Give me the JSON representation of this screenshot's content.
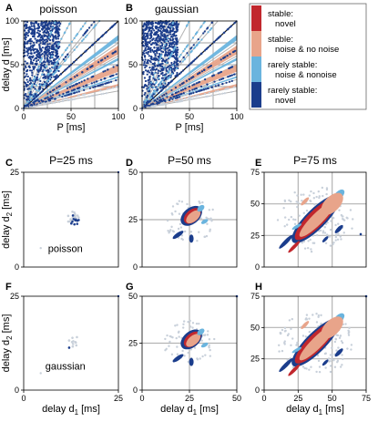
{
  "colors": {
    "stable_novel": "#c1272d",
    "stable_both": "#e8a48a",
    "rarely_both": "#6ab4de",
    "rarely_novel": "#1b3d8c",
    "grid": "#b3b3b3",
    "faint": "#c8d0da",
    "diag": "#111111"
  },
  "legend": [
    {
      "key": "stable_novel",
      "line1": "stable:",
      "line2": "novel"
    },
    {
      "key": "stable_both",
      "line1": "stable:",
      "line2": "noise & no noise"
    },
    {
      "key": "rarely_both",
      "line1": "rarely stable:",
      "line2": "noise & nonoise"
    },
    {
      "key": "rarely_novel",
      "line1": "rarely stable:",
      "line2": "novel"
    }
  ],
  "chart_data": [
    {
      "panel": "A",
      "type": "scatter",
      "title": "poisson",
      "xlabel": "P [ms]",
      "ylabel": "delay d [ms]",
      "xlim": [
        0,
        100
      ],
      "ylim": [
        0,
        100
      ],
      "xticks": [
        "0",
        "50",
        "100"
      ],
      "yticks": [
        "0",
        "50",
        "100"
      ]
    },
    {
      "panel": "B",
      "type": "scatter",
      "title": "gaussian",
      "xlabel": "P [ms]",
      "ylabel": "",
      "xlim": [
        0,
        100
      ],
      "ylim": [
        0,
        100
      ],
      "xticks": [
        "0",
        "50",
        "100"
      ],
      "yticks": [
        "0",
        "50",
        "100"
      ]
    },
    {
      "panel": "C",
      "type": "scatter",
      "title": "P=25 ms",
      "inset": "poisson",
      "xlabel": "",
      "ylabel": "delay d2 [ms]",
      "xlim": [
        0,
        25
      ],
      "ylim": [
        0,
        25
      ],
      "xticks": [],
      "yticks": [
        "0",
        "25"
      ]
    },
    {
      "panel": "D",
      "type": "scatter",
      "title": "P=50 ms",
      "xlabel": "",
      "ylabel": "",
      "xlim": [
        0,
        50
      ],
      "ylim": [
        0,
        50
      ],
      "xticks": [],
      "yticks": [
        "0",
        "25",
        "50"
      ]
    },
    {
      "panel": "E",
      "type": "scatter",
      "title": "P=75 ms",
      "xlabel": "",
      "ylabel": "",
      "xlim": [
        0,
        75
      ],
      "ylim": [
        0,
        75
      ],
      "xticks": [],
      "yticks": [
        "0",
        "25",
        "50",
        "75"
      ]
    },
    {
      "panel": "F",
      "type": "scatter",
      "title": "",
      "inset": "gaussian",
      "xlabel": "delay d1 [ms]",
      "ylabel": "delay d2 [ms]",
      "xlim": [
        0,
        25
      ],
      "ylim": [
        0,
        25
      ],
      "xticks": [
        "0",
        "25"
      ],
      "yticks": [
        "0",
        "25"
      ]
    },
    {
      "panel": "G",
      "type": "scatter",
      "title": "",
      "xlabel": "delay d1 [ms]",
      "ylabel": "",
      "xlim": [
        0,
        50
      ],
      "ylim": [
        0,
        50
      ],
      "xticks": [
        "0",
        "25",
        "50"
      ],
      "yticks": [
        "0",
        "25",
        "50"
      ]
    },
    {
      "panel": "H",
      "type": "scatter",
      "title": "",
      "xlabel": "delay d1 [ms]",
      "ylabel": "",
      "xlim": [
        0,
        75
      ],
      "ylim": [
        0,
        75
      ],
      "xticks": [
        "0",
        "25",
        "50",
        "75"
      ],
      "yticks": [
        "0",
        "25",
        "50",
        "75"
      ]
    }
  ]
}
